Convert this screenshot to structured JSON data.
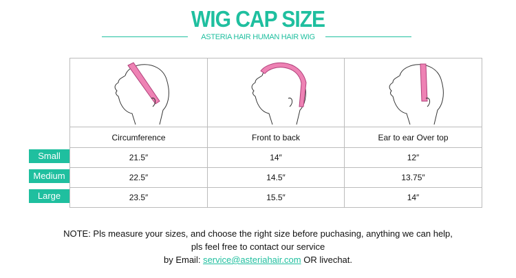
{
  "header": {
    "title": "WIG CAP SIZE",
    "subtitle": "ASTERIA HAIR HUMAN HAIR WIG"
  },
  "colors": {
    "accent": "#1fbf9f",
    "tape": "#ee82b4"
  },
  "table": {
    "columns": [
      "Circumference",
      "Front to back",
      "Ear to ear Over top"
    ],
    "rows": [
      {
        "label": "Small",
        "values": [
          "21.5″",
          "14″",
          "12″"
        ]
      },
      {
        "label": "Medium",
        "values": [
          "22.5″",
          "14.5″",
          "13.75″"
        ]
      },
      {
        "label": "Large",
        "values": [
          "23.5″",
          "15.5″",
          "14″"
        ]
      }
    ]
  },
  "note": {
    "line1": "NOTE: Pls measure your sizes, and choose the right size before puchasing, anything we can help,",
    "line2": "pls feel free to contact our service",
    "line3_prefix": "by Email: ",
    "email": "service@asteriahair.com",
    "line3_suffix": " OR livechat."
  }
}
